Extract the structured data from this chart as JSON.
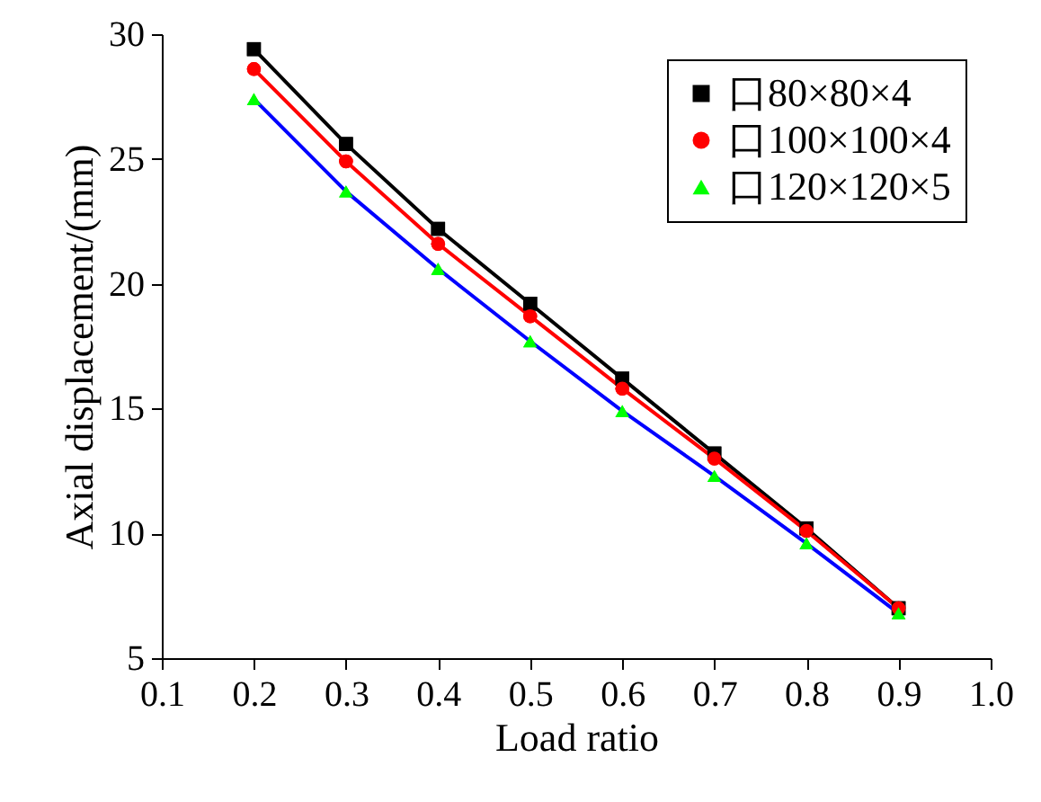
{
  "chart_data": {
    "type": "line",
    "xlabel": "Load ratio",
    "ylabel": "Axial displacement/(mm)",
    "x": [
      0.2,
      0.3,
      0.4,
      0.5,
      0.6,
      0.7,
      0.8,
      0.9
    ],
    "series": [
      {
        "name": "口80×80×4",
        "color": "#000000",
        "marker": "square",
        "values": [
          29.4,
          25.6,
          22.2,
          19.2,
          16.2,
          13.2,
          10.2,
          7.0
        ]
      },
      {
        "name": "口100×100×4",
        "color": "#ff0000",
        "marker": "circle",
        "values": [
          28.6,
          24.9,
          21.6,
          18.7,
          15.8,
          13.0,
          10.1,
          7.0
        ]
      },
      {
        "name": "口120×120×5",
        "color": "#0000ff",
        "marker": "triangle",
        "values": [
          27.4,
          23.7,
          20.6,
          17.7,
          14.9,
          12.3,
          9.6,
          6.8
        ]
      }
    ],
    "xlim": [
      0.1,
      1.0
    ],
    "xticks": [
      0.1,
      0.2,
      0.3,
      0.4,
      0.5,
      0.6,
      0.7,
      0.8,
      0.9,
      {
        "value": 1.0,
        "label": "1.0"
      }
    ],
    "ylim": [
      5,
      30
    ],
    "yticks": [
      5,
      10,
      15,
      20,
      25,
      30
    ],
    "legend": "top right",
    "grid": false
  }
}
